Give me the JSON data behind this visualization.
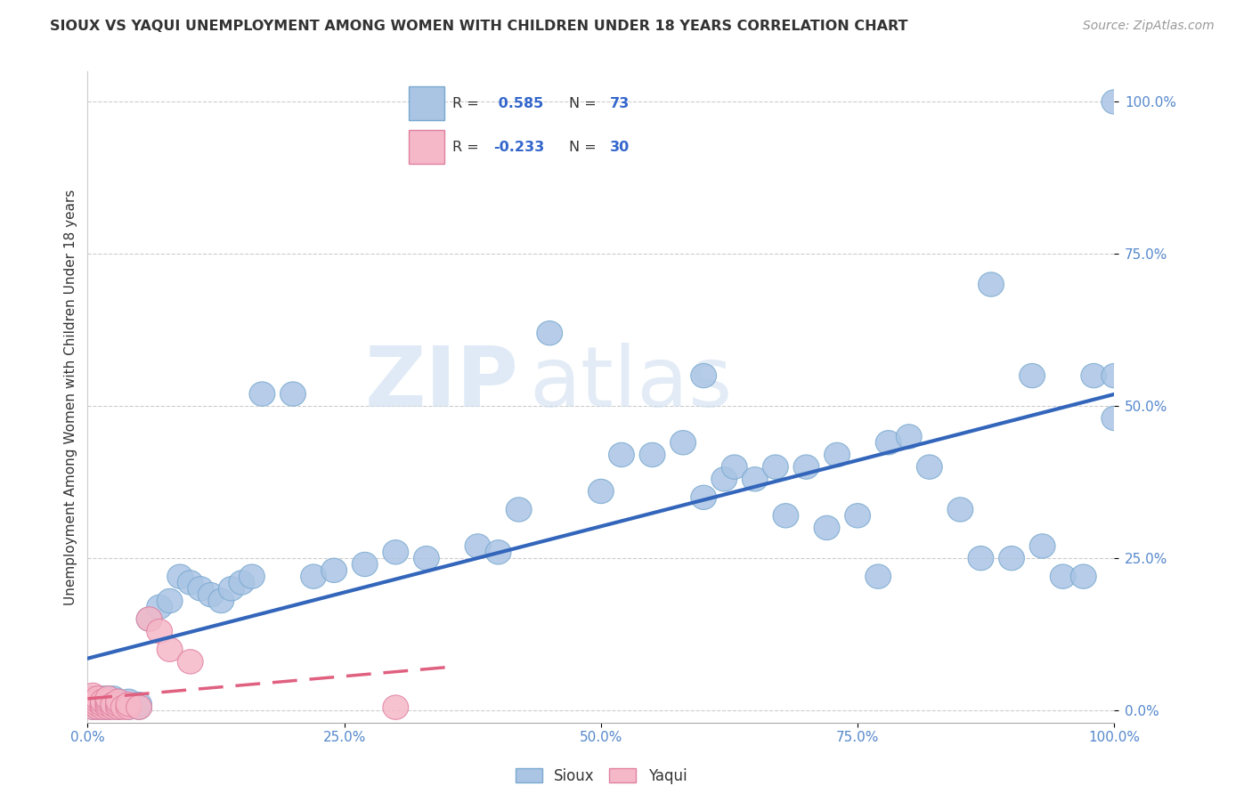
{
  "title": "SIOUX VS YAQUI UNEMPLOYMENT AMONG WOMEN WITH CHILDREN UNDER 18 YEARS CORRELATION CHART",
  "source": "Source: ZipAtlas.com",
  "ylabel": "Unemployment Among Women with Children Under 18 years",
  "xlim": [
    0.0,
    1.0
  ],
  "ylim": [
    -0.02,
    1.05
  ],
  "xtick_labels": [
    "0.0%",
    "",
    "25.0%",
    "",
    "50.0%",
    "",
    "75.0%",
    "",
    "100.0%"
  ],
  "xtick_vals": [
    0.0,
    0.125,
    0.25,
    0.375,
    0.5,
    0.625,
    0.75,
    0.875,
    1.0
  ],
  "ytick_labels": [
    "0.0%",
    "25.0%",
    "50.0%",
    "75.0%",
    "100.0%"
  ],
  "ytick_vals": [
    0.0,
    0.25,
    0.5,
    0.75,
    1.0
  ],
  "sioux_color": "#aac4e4",
  "sioux_edge_color": "#7aaad0",
  "yaqui_color": "#f5b8c8",
  "yaqui_edge_color": "#e080a0",
  "sioux_line_color": "#3366bb",
  "yaqui_line_color": "#e06080",
  "legend_sioux_color": "#aac4e4",
  "legend_yaqui_color": "#f5b8c8",
  "R_sioux": "0.585",
  "N_sioux": "73",
  "R_yaqui": "-0.233",
  "N_yaqui": "30",
  "watermark_zip": "ZIP",
  "watermark_atlas": "atlas",
  "background_color": "#ffffff",
  "grid_color": "#cccccc",
  "tick_color": "#5588cc",
  "sioux_x": [
    0.005,
    0.005,
    0.005,
    0.01,
    0.01,
    0.01,
    0.015,
    0.015,
    0.02,
    0.02,
    0.02,
    0.025,
    0.025,
    0.03,
    0.03,
    0.035,
    0.04,
    0.04,
    0.05,
    0.05,
    0.06,
    0.07,
    0.08,
    0.09,
    0.1,
    0.11,
    0.12,
    0.13,
    0.14,
    0.15,
    0.16,
    0.17,
    0.2,
    0.22,
    0.24,
    0.27,
    0.3,
    0.33,
    0.38,
    0.4,
    0.42,
    0.45,
    0.5,
    0.52,
    0.55,
    0.58,
    0.6,
    0.6,
    0.62,
    0.63,
    0.65,
    0.67,
    0.68,
    0.7,
    0.72,
    0.73,
    0.75,
    0.77,
    0.78,
    0.8,
    0.82,
    0.85,
    0.87,
    0.88,
    0.9,
    0.92,
    0.93,
    0.95,
    0.97,
    0.98,
    1.0,
    1.0,
    1.0
  ],
  "sioux_y": [
    0.005,
    0.01,
    0.02,
    0.005,
    0.01,
    0.015,
    0.005,
    0.02,
    0.005,
    0.01,
    0.02,
    0.01,
    0.02,
    0.005,
    0.015,
    0.01,
    0.005,
    0.015,
    0.005,
    0.01,
    0.15,
    0.17,
    0.18,
    0.22,
    0.21,
    0.2,
    0.19,
    0.18,
    0.2,
    0.21,
    0.22,
    0.52,
    0.52,
    0.22,
    0.23,
    0.24,
    0.26,
    0.25,
    0.27,
    0.26,
    0.33,
    0.62,
    0.36,
    0.42,
    0.42,
    0.44,
    0.35,
    0.55,
    0.38,
    0.4,
    0.38,
    0.4,
    0.32,
    0.4,
    0.3,
    0.42,
    0.32,
    0.22,
    0.44,
    0.45,
    0.4,
    0.33,
    0.25,
    0.7,
    0.25,
    0.55,
    0.27,
    0.22,
    0.22,
    0.55,
    0.48,
    0.55,
    1.0
  ],
  "yaqui_x": [
    0.005,
    0.005,
    0.005,
    0.005,
    0.005,
    0.01,
    0.01,
    0.01,
    0.01,
    0.015,
    0.015,
    0.015,
    0.02,
    0.02,
    0.02,
    0.02,
    0.025,
    0.025,
    0.03,
    0.03,
    0.03,
    0.035,
    0.04,
    0.04,
    0.05,
    0.06,
    0.07,
    0.08,
    0.1,
    0.3
  ],
  "yaqui_y": [
    0.005,
    0.01,
    0.015,
    0.02,
    0.025,
    0.005,
    0.01,
    0.015,
    0.02,
    0.005,
    0.01,
    0.015,
    0.005,
    0.01,
    0.015,
    0.02,
    0.005,
    0.01,
    0.005,
    0.01,
    0.015,
    0.005,
    0.005,
    0.01,
    0.005,
    0.15,
    0.13,
    0.1,
    0.08,
    0.005
  ]
}
